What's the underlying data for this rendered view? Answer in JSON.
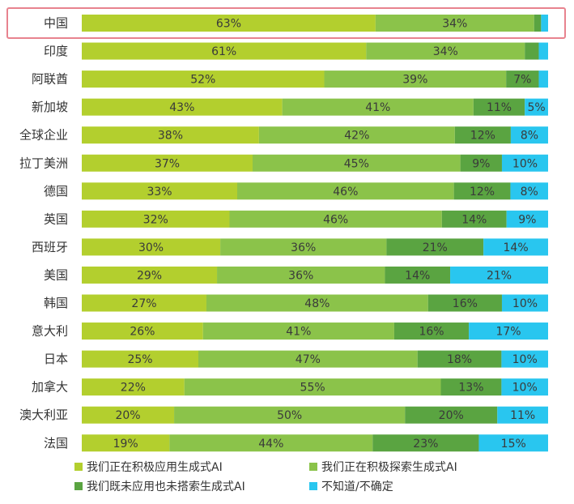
{
  "chart_data": {
    "type": "bar",
    "orientation": "horizontal",
    "stacked": true,
    "percent": true,
    "categories": [
      "中国",
      "印度",
      "阿联酋",
      "新加坡",
      "全球企业",
      "拉丁美洲",
      "德国",
      "英国",
      "西班牙",
      "美国",
      "韩国",
      "意大利",
      "日本",
      "加拿大",
      "澳大利亚",
      "法国"
    ],
    "highlighted_category": "中国",
    "series": [
      {
        "name": "我们正在积极应用生成式AI",
        "color": "#b3cf2e",
        "values": [
          63,
          61,
          52,
          43,
          38,
          37,
          33,
          32,
          30,
          29,
          27,
          26,
          25,
          22,
          20,
          19
        ]
      },
      {
        "name": "我们正在积极探索生成式AI",
        "color": "#8bc34a",
        "values": [
          34,
          34,
          39,
          41,
          42,
          45,
          46,
          46,
          36,
          36,
          48,
          41,
          47,
          55,
          50,
          44
        ]
      },
      {
        "name": "我们既未应用也未搭索生成式AI",
        "color": "#5aa441",
        "values": [
          null,
          null,
          7,
          11,
          12,
          9,
          12,
          14,
          21,
          14,
          16,
          16,
          18,
          13,
          20,
          23
        ]
      },
      {
        "name": "不知道/不确定",
        "color": "#29c6ef",
        "values": [
          null,
          null,
          null,
          5,
          8,
          10,
          8,
          9,
          14,
          21,
          10,
          17,
          10,
          10,
          11,
          15
        ]
      }
    ],
    "segment_shares": [
      [
        63,
        34,
        1.5,
        1.5
      ],
      [
        61,
        34,
        3,
        2
      ],
      [
        52,
        39,
        7,
        2
      ]
    ],
    "label_suffix": "%",
    "xlim": [
      0,
      100
    ],
    "grid": false,
    "legend_position": "bottom",
    "highlight_color": "#e8838f"
  }
}
